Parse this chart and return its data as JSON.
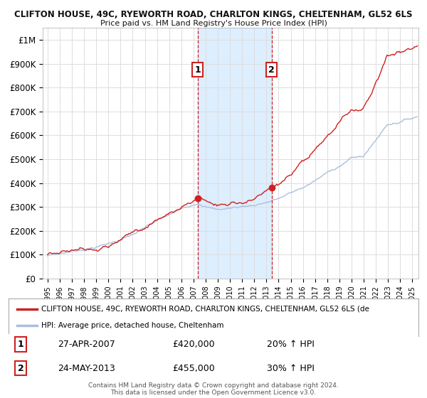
{
  "title_line1": "CLIFTON HOUSE, 49C, RYEWORTH ROAD, CHARLTON KINGS, CHELTENHAM, GL52 6LS",
  "title_line2": "Price paid vs. HM Land Registry's House Price Index (HPI)",
  "ylim": [
    0,
    1050000
  ],
  "yticks": [
    0,
    100000,
    200000,
    300000,
    400000,
    500000,
    600000,
    700000,
    800000,
    900000,
    1000000
  ],
  "ytick_labels": [
    "£0",
    "£100K",
    "£200K",
    "£300K",
    "£400K",
    "£500K",
    "£600K",
    "£700K",
    "£800K",
    "£900K",
    "£1M"
  ],
  "hpi_color": "#aabfdd",
  "price_color": "#cc2222",
  "transaction1_year": 2007.33,
  "transaction1_price": 420000,
  "transaction1_date": "27-APR-2007",
  "transaction1_hpi": "20% ↑ HPI",
  "transaction2_year": 2013.42,
  "transaction2_price": 455000,
  "transaction2_date": "24-MAY-2013",
  "transaction2_hpi": "30% ↑ HPI",
  "legend_label1": "CLIFTON HOUSE, 49C, RYEWORTH ROAD, CHARLTON KINGS, CHELTENHAM, GL52 6LS (de",
  "legend_label2": "HPI: Average price, detached house, Cheltenham",
  "footnote": "Contains HM Land Registry data © Crown copyright and database right 2024.\nThis data is licensed under the Open Government Licence v3.0.",
  "background_color": "#ffffff",
  "grid_color": "#dddddd",
  "shaded_color": "#ddeeff",
  "box_edge_color": "#cc2222"
}
